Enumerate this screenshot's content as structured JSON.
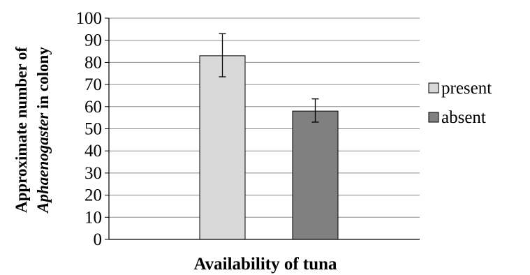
{
  "chart_data": {
    "type": "bar",
    "xlabel": "Availability of tuna",
    "ylabel": {
      "line1": "Approximate number of",
      "line2_italic": "Aphaenogaster",
      "line2_rest": " in colony"
    },
    "ylim": [
      0,
      100
    ],
    "yticks": [
      "0",
      "10",
      "20",
      "30",
      "40",
      "50",
      "60",
      "70",
      "80",
      "90",
      "100"
    ],
    "grid": true,
    "legend_position": "right",
    "series": [
      {
        "name": "present",
        "value": 83,
        "error_low": 73.5,
        "error_high": 93,
        "color": "#d9d9d9"
      },
      {
        "name": "absent",
        "value": 58,
        "error_low": 53,
        "error_high": 63.5,
        "color": "#808080"
      }
    ]
  }
}
